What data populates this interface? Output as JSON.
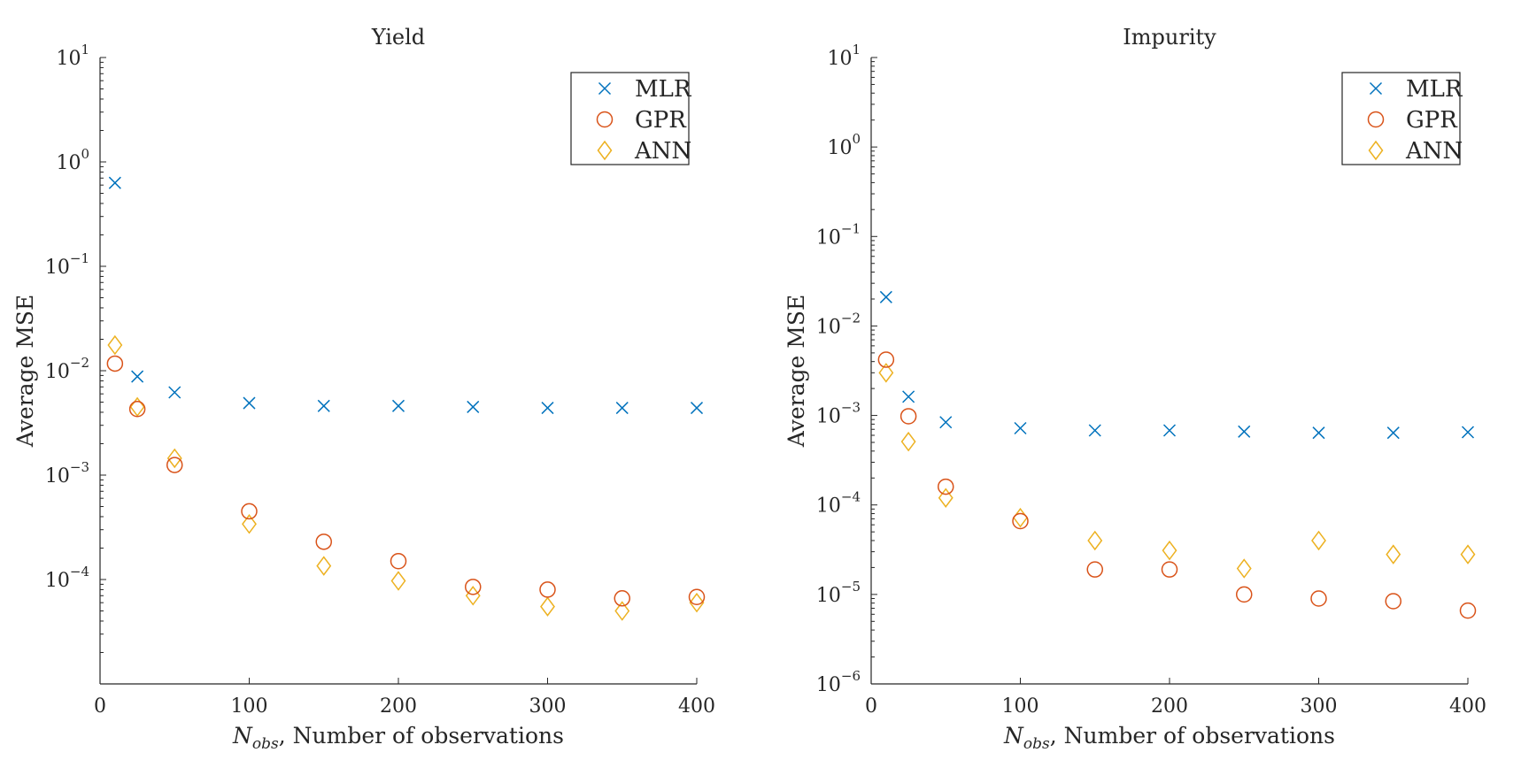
{
  "colors": {
    "MLR": "#0072BD",
    "GPR": "#D95319",
    "ANN": "#EDB120",
    "axis": "#262626"
  },
  "chart_data": [
    {
      "type": "scatter",
      "title": "Yield",
      "xlabel_symbol": "N",
      "xlabel_sub": "obs",
      "xlabel_rest": ", Number of observations",
      "ylabel": "Average MSE",
      "xlim": [
        0,
        400
      ],
      "ylim": [
        1e-05,
        10
      ],
      "yscale": "log",
      "xticks": [
        0,
        100,
        200,
        300,
        400
      ],
      "yticks": [
        -4,
        -3,
        -2,
        -1,
        0,
        1
      ],
      "legend": "top-right",
      "x": [
        10,
        25,
        50,
        100,
        150,
        200,
        250,
        300,
        350,
        400
      ],
      "series": [
        {
          "name": "MLR",
          "marker": "x",
          "values": [
            0.63,
            0.0088,
            0.0062,
            0.0049,
            0.0046,
            0.0046,
            0.0045,
            0.0044,
            0.0044,
            0.0044
          ]
        },
        {
          "name": "GPR",
          "marker": "circle",
          "values": [
            0.0117,
            0.0043,
            0.00125,
            0.00045,
            0.00023,
            0.00015,
            8.5e-05,
            8e-05,
            6.6e-05,
            6.8e-05
          ]
        },
        {
          "name": "ANN",
          "marker": "diamond",
          "values": [
            0.0176,
            0.0045,
            0.00145,
            0.00034,
            0.000135,
            9.7e-05,
            7e-05,
            5.5e-05,
            5e-05,
            6e-05
          ]
        }
      ]
    },
    {
      "type": "scatter",
      "title": "Impurity",
      "xlabel_symbol": "N",
      "xlabel_sub": "obs",
      "xlabel_rest": ", Number of observations",
      "ylabel": "Average MSE",
      "xlim": [
        0,
        400
      ],
      "ylim": [
        1e-06,
        10
      ],
      "yscale": "log",
      "xticks": [
        0,
        100,
        200,
        300,
        400
      ],
      "yticks": [
        -6,
        -5,
        -4,
        -3,
        -2,
        -1,
        0,
        1
      ],
      "legend": "top-right",
      "x": [
        10,
        25,
        50,
        100,
        150,
        200,
        250,
        300,
        350,
        400
      ],
      "series": [
        {
          "name": "MLR",
          "marker": "x",
          "values": [
            0.021,
            0.00162,
            0.00084,
            0.00072,
            0.00068,
            0.00068,
            0.00066,
            0.00064,
            0.00064,
            0.00065
          ]
        },
        {
          "name": "GPR",
          "marker": "circle",
          "values": [
            0.0042,
            0.00098,
            0.00016,
            6.6e-05,
            1.9e-05,
            1.9e-05,
            1e-05,
            9e-06,
            8.4e-06,
            6.6e-06
          ]
        },
        {
          "name": "ANN",
          "marker": "diamond",
          "values": [
            0.003,
            0.00051,
            0.00012,
            7.2e-05,
            4e-05,
            3.1e-05,
            1.95e-05,
            4e-05,
            2.8e-05,
            2.8e-05
          ]
        }
      ]
    }
  ]
}
